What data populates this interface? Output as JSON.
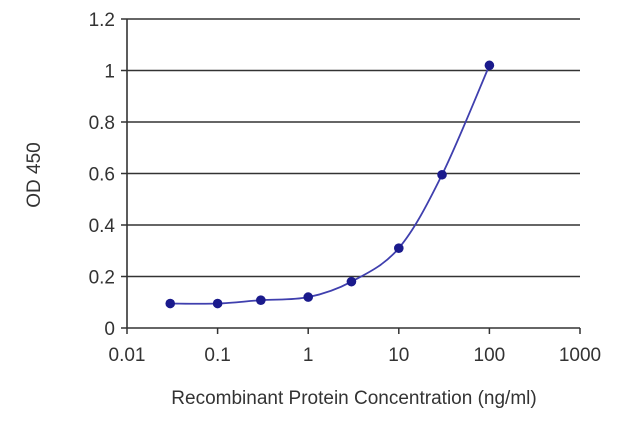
{
  "chart_data": {
    "type": "line",
    "xlabel": "Recombinant Protein Concentration (ng/ml)",
    "ylabel": "OD 450",
    "x_scale": "log",
    "xlim": [
      0.01,
      1000
    ],
    "ylim": [
      0,
      1.2
    ],
    "x_ticks": [
      "0.01",
      "0.1",
      "1",
      "10",
      "100",
      "1000"
    ],
    "y_ticks": [
      "0",
      "0.2",
      "0.4",
      "0.6",
      "0.8",
      "1",
      "1.2"
    ],
    "grid": "horizontal",
    "series": [
      {
        "x": [
          0.03,
          0.1,
          0.3,
          1,
          3,
          10,
          30,
          100
        ],
        "y": [
          0.095,
          0.095,
          0.108,
          0.12,
          0.18,
          0.31,
          0.595,
          1.02
        ]
      }
    ],
    "colors": {
      "line": "#3f3fae",
      "marker": "#1a1a8c",
      "grid": "#333333",
      "axis": "#333333"
    }
  }
}
